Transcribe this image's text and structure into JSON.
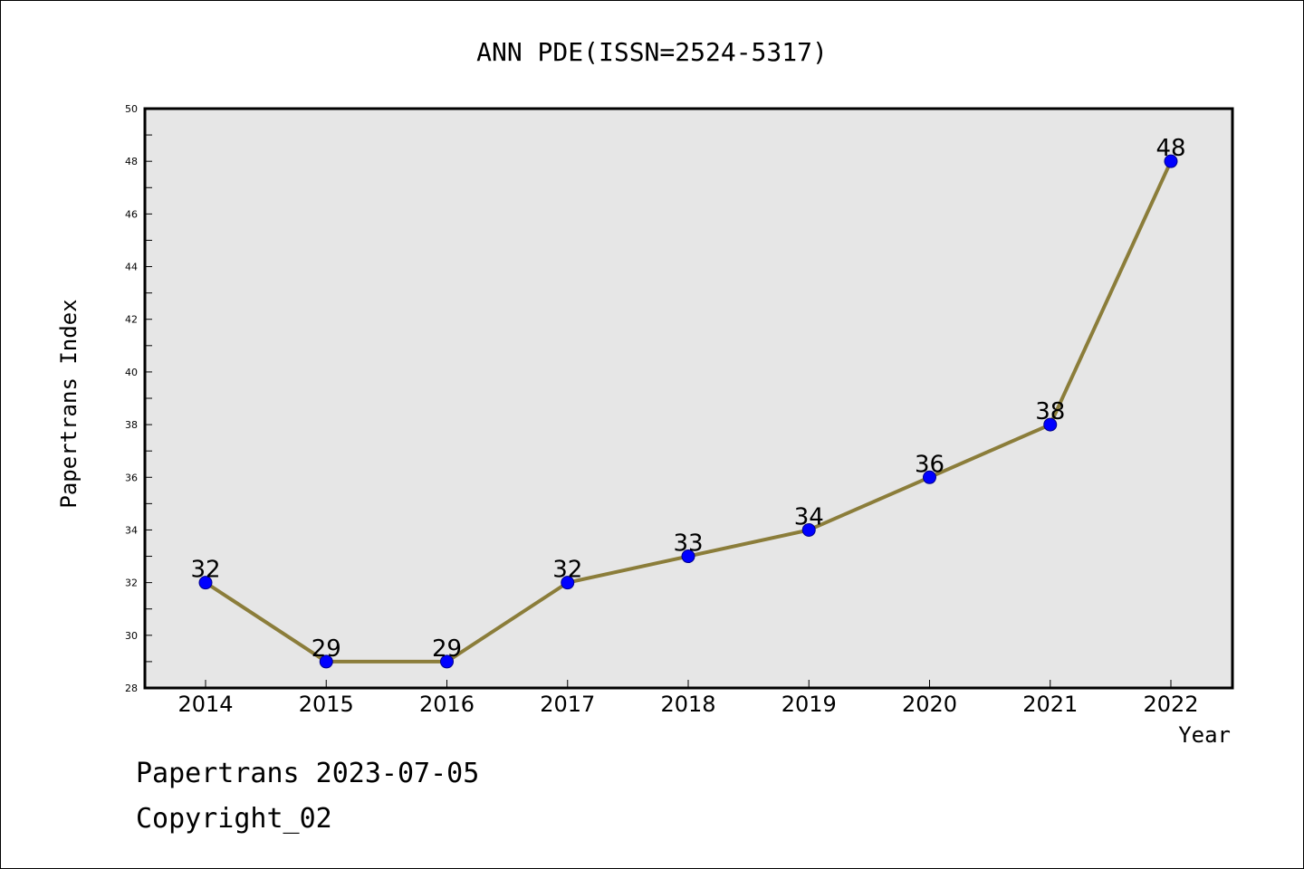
{
  "chart_data": {
    "type": "line",
    "title": "ANN PDE(ISSN=2524-5317)",
    "xlabel": "Year",
    "ylabel": "Papertrans Index",
    "categories": [
      "2014",
      "2015",
      "2016",
      "2017",
      "2018",
      "2019",
      "2020",
      "2021",
      "2022"
    ],
    "values": [
      32,
      29,
      29,
      32,
      33,
      34,
      36,
      38,
      48
    ],
    "data_labels": [
      "32",
      "29",
      "29",
      "32",
      "33",
      "34",
      "36",
      "38",
      "48"
    ],
    "ylim": [
      28,
      50
    ],
    "y_ticks": [
      "28",
      "30",
      "32",
      "34",
      "36",
      "38",
      "40",
      "42",
      "44",
      "46",
      "48",
      "50"
    ],
    "grid": false,
    "legend": "none",
    "colors": {
      "line": "#8b7d3a",
      "marker": "#0000ff",
      "plot_background": "#e6e6e6"
    }
  },
  "footer": {
    "line1": "Papertrans 2023-07-05",
    "line2": "Copyright_02"
  }
}
